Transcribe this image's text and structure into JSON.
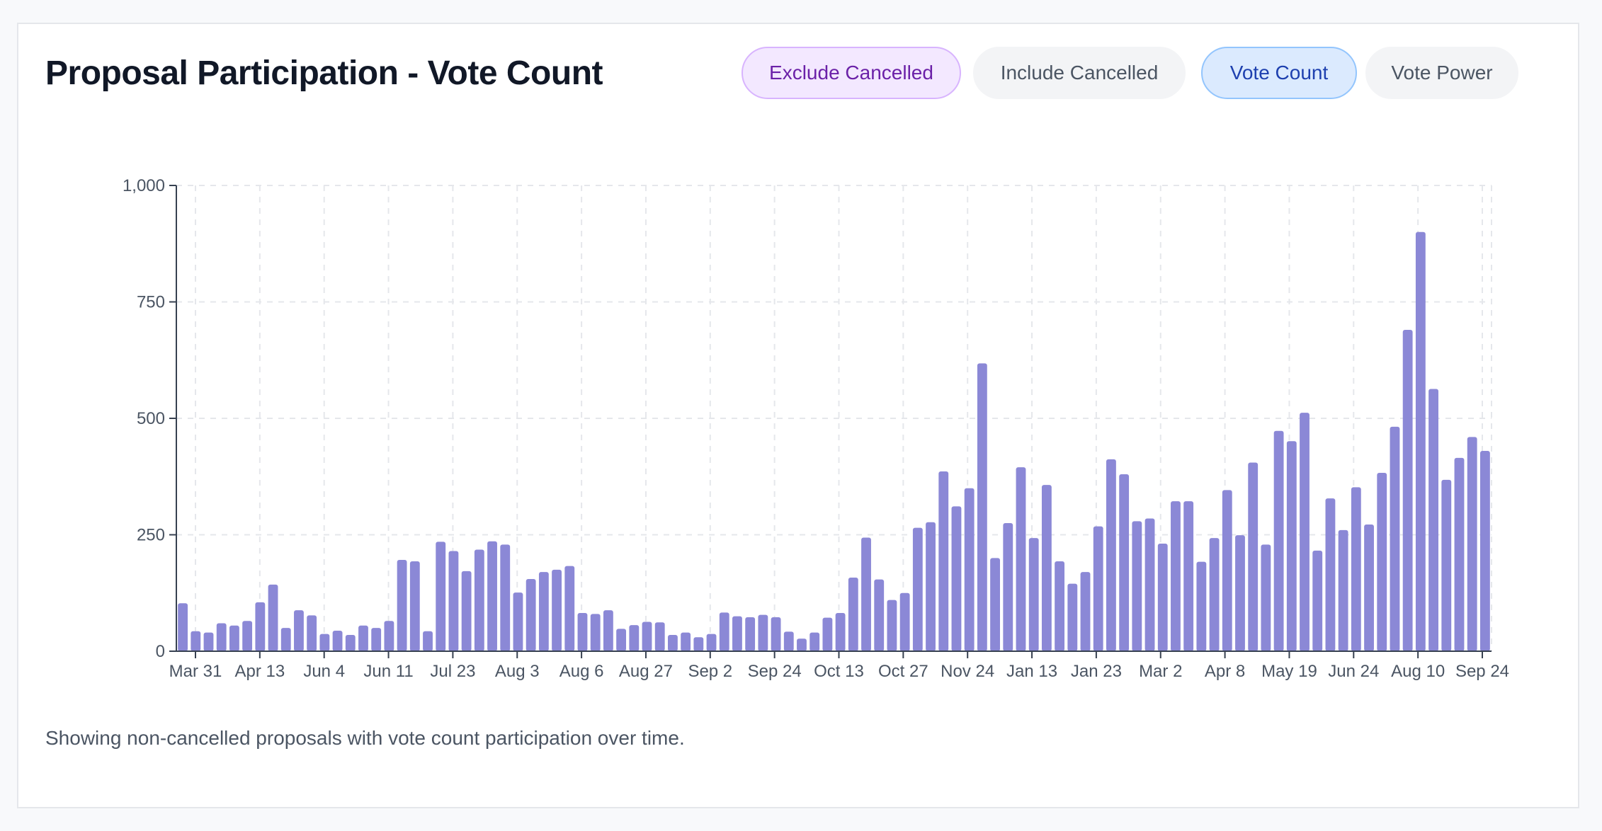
{
  "title": "Proposal Participation - Vote Count",
  "toggles": {
    "exclude_cancelled": "Exclude Cancelled",
    "include_cancelled": "Include Cancelled",
    "vote_count": "Vote Count",
    "vote_power": "Vote Power"
  },
  "footnote": "Showing non-cancelled proposals with vote count participation over time.",
  "colors": {
    "bar": "#8b88d6",
    "grid": "#e5e7eb",
    "axis": "#374151",
    "tick_text": "#4b5563"
  },
  "chart_data": {
    "type": "bar",
    "title": "",
    "xlabel": "",
    "ylabel": "",
    "ylim": [
      0,
      1000
    ],
    "yticks": [
      0,
      250,
      500,
      750,
      1000
    ],
    "ytick_labels": [
      "0",
      "250",
      "500",
      "750",
      "1,000"
    ],
    "grid": true,
    "xtick_labels": [
      "Mar 31",
      "Apr 13",
      "Jun 4",
      "Jun 11",
      "Jul 23",
      "Aug 3",
      "Aug 6",
      "Aug 27",
      "Sep 2",
      "Sep 24",
      "Oct 13",
      "Oct 27",
      "Nov 24",
      "Jan 13",
      "Jan 23",
      "Mar 2",
      "Apr 8",
      "May 19",
      "Jun 24",
      "Aug 10",
      "Sep 24"
    ],
    "values": [
      103,
      43,
      40,
      60,
      55,
      65,
      105,
      143,
      50,
      88,
      77,
      37,
      44,
      35,
      55,
      50,
      65,
      196,
      193,
      43,
      235,
      215,
      172,
      218,
      236,
      229,
      126,
      155,
      170,
      175,
      183,
      82,
      80,
      88,
      48,
      56,
      63,
      62,
      35,
      40,
      30,
      37,
      83,
      75,
      73,
      78,
      73,
      42,
      27,
      40,
      72,
      82,
      158,
      244,
      154,
      110,
      125,
      265,
      277,
      386,
      311,
      350,
      618,
      200,
      275,
      395,
      243,
      357,
      193,
      145,
      170,
      268,
      412,
      380,
      279,
      285,
      231,
      322,
      322,
      192,
      243,
      346,
      249,
      405,
      229,
      473,
      451,
      512,
      216,
      328,
      260,
      352,
      272,
      383,
      482,
      690,
      900,
      563,
      368,
      415,
      460,
      430
    ]
  }
}
